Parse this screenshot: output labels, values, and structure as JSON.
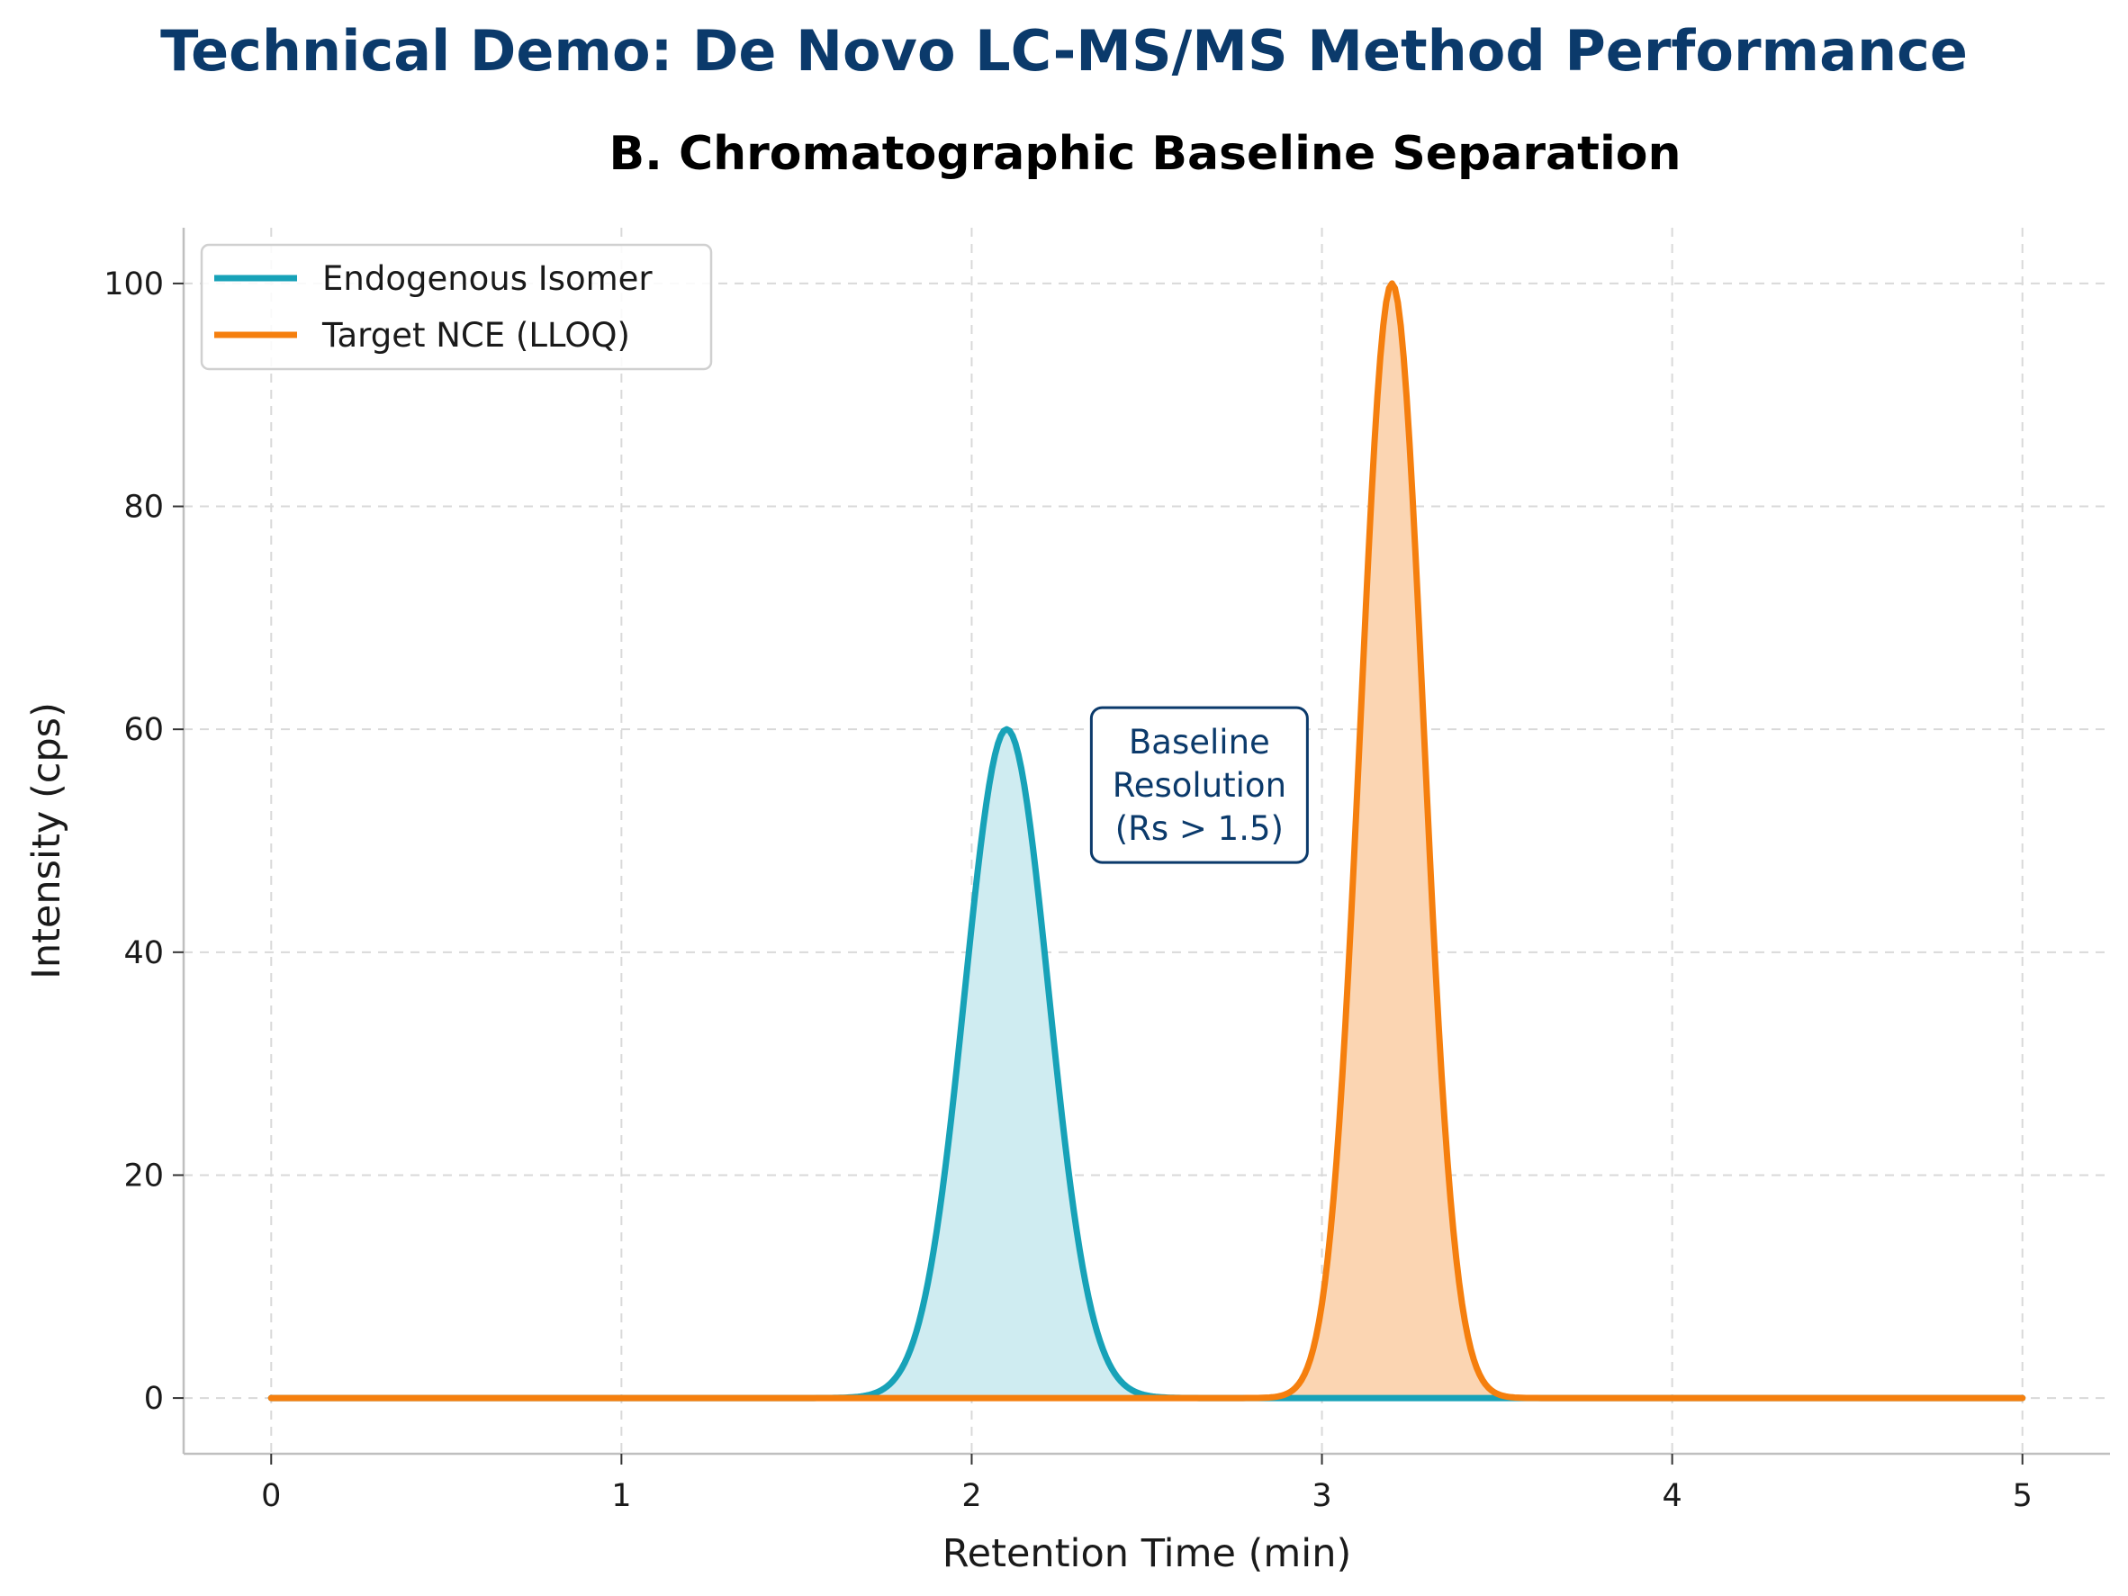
{
  "figure": {
    "suptitle": "Technical Demo: De Novo LC-MS/MS Method Performance",
    "suptitle_color": "#0b3a6b"
  },
  "chart_data": {
    "type": "line",
    "title": "B. Chromatographic Baseline Separation",
    "xlabel": "Retention Time (min)",
    "ylabel": "Intensity (cps)",
    "xlim": [
      -0.25,
      5.25
    ],
    "ylim": [
      -5,
      105
    ],
    "xticks": [
      0,
      1,
      2,
      3,
      4,
      5
    ],
    "yticks": [
      0,
      20,
      40,
      60,
      80,
      100
    ],
    "grid": true,
    "legend_position": "top-left",
    "series": [
      {
        "name": "Endogenous Isomer",
        "color": "#17a2b8",
        "fill_color": "#cfecf1",
        "peak_center": 2.1,
        "peak_height": 60,
        "peak_sigma": 0.12
      },
      {
        "name": "Target NCE (LLOQ)",
        "color": "#f57f0e",
        "fill_color": "#fbd5b2",
        "peak_center": 3.2,
        "peak_height": 100,
        "peak_sigma": 0.09
      }
    ],
    "annotation": {
      "lines": [
        "Baseline",
        "Resolution",
        "(Rs > 1.5)"
      ],
      "x": 2.65,
      "y": 55,
      "color": "#0b3a6b"
    }
  }
}
